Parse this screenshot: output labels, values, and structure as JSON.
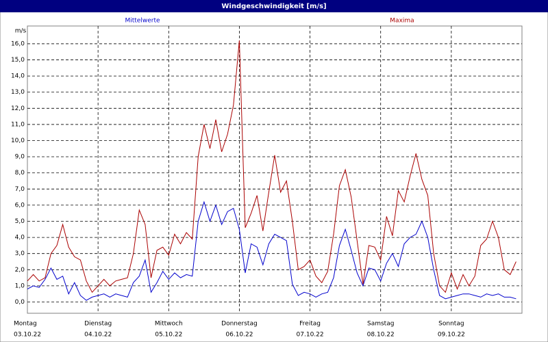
{
  "chart_data": {
    "type": "line",
    "title": "Windgeschwindigkeit [m/s]",
    "y_label": "m/s",
    "days": [
      {
        "name": "Montag",
        "date": "03.10.22"
      },
      {
        "name": "Dienstag",
        "date": "04.10.22"
      },
      {
        "name": "Mittwoch",
        "date": "05.10.22"
      },
      {
        "name": "Donnerstag",
        "date": "06.10.22"
      },
      {
        "name": "Freitag",
        "date": "07.10.22"
      },
      {
        "name": "Samstag",
        "date": "08.10.22"
      },
      {
        "name": "Sonntag",
        "date": "09.10.22"
      }
    ],
    "ylim": [
      -0.7,
      17.1
    ],
    "yticks": [
      {
        "value": 0,
        "label": "0,0"
      },
      {
        "value": 1,
        "label": "1,0"
      },
      {
        "value": 2,
        "label": "2,0"
      },
      {
        "value": 3,
        "label": "3,0"
      },
      {
        "value": 4,
        "label": "4,0"
      },
      {
        "value": 5,
        "label": "5,0"
      },
      {
        "value": 6,
        "label": "6,0"
      },
      {
        "value": 7,
        "label": "7,0"
      },
      {
        "value": 8,
        "label": "8,0"
      },
      {
        "value": 9,
        "label": "9,0"
      },
      {
        "value": 10,
        "label": "10,0"
      },
      {
        "value": 11,
        "label": "11,0"
      },
      {
        "value": 12,
        "label": "12,0"
      },
      {
        "value": 13,
        "label": "13,0"
      },
      {
        "value": 14,
        "label": "14,0"
      },
      {
        "value": 15,
        "label": "15,0"
      },
      {
        "value": 16,
        "label": "16,0"
      }
    ],
    "grid": true,
    "series": [
      {
        "name": "Mittelwerte",
        "color": "#0000cc",
        "values": [
          0.8,
          1.0,
          0.9,
          1.4,
          2.1,
          1.4,
          1.6,
          0.5,
          1.2,
          0.4,
          0.1,
          0.3,
          0.4,
          0.5,
          0.3,
          0.5,
          0.4,
          0.3,
          1.2,
          1.6,
          2.6,
          0.6,
          1.2,
          1.9,
          1.4,
          1.8,
          1.5,
          1.7,
          1.6,
          5.0,
          6.2,
          5.0,
          6.0,
          4.8,
          5.6,
          5.8,
          4.5,
          1.8,
          3.6,
          3.4,
          2.3,
          3.6,
          4.2,
          4.0,
          3.8,
          1.1,
          0.4,
          0.6,
          0.5,
          0.3,
          0.5,
          0.6,
          1.5,
          3.5,
          4.5,
          3.2,
          1.8,
          1.0,
          2.1,
          2.0,
          1.3,
          2.4,
          3.0,
          2.2,
          3.6,
          4.0,
          4.2,
          5.0,
          4.0,
          2.0,
          0.4,
          0.2,
          0.3,
          0.4,
          0.5,
          0.5,
          0.4,
          0.3,
          0.5,
          0.4,
          0.5,
          0.3,
          0.3,
          0.2
        ]
      },
      {
        "name": "Maxima",
        "color": "#aa0000",
        "values": [
          1.3,
          1.7,
          1.3,
          1.5,
          3.0,
          3.5,
          4.8,
          3.4,
          2.8,
          2.6,
          1.3,
          0.6,
          1.0,
          1.4,
          1.0,
          1.3,
          1.4,
          1.5,
          3.0,
          5.7,
          4.8,
          1.5,
          3.2,
          3.4,
          2.9,
          4.2,
          3.6,
          4.3,
          3.9,
          9.0,
          11.0,
          9.5,
          11.3,
          9.3,
          10.4,
          12.2,
          16.2,
          4.6,
          5.5,
          6.6,
          4.4,
          6.8,
          9.1,
          6.8,
          7.5,
          5.0,
          2.0,
          2.2,
          2.6,
          1.6,
          1.2,
          1.9,
          4.2,
          7.2,
          8.2,
          6.5,
          3.8,
          1.1,
          3.5,
          3.4,
          2.6,
          5.3,
          4.1,
          6.9,
          6.2,
          7.8,
          9.2,
          7.6,
          6.6,
          3.0,
          1.0,
          0.6,
          1.8,
          0.8,
          1.7,
          1.0,
          1.6,
          3.5,
          3.9,
          5.0,
          4.0,
          2.0,
          1.7,
          2.5
        ]
      }
    ]
  }
}
